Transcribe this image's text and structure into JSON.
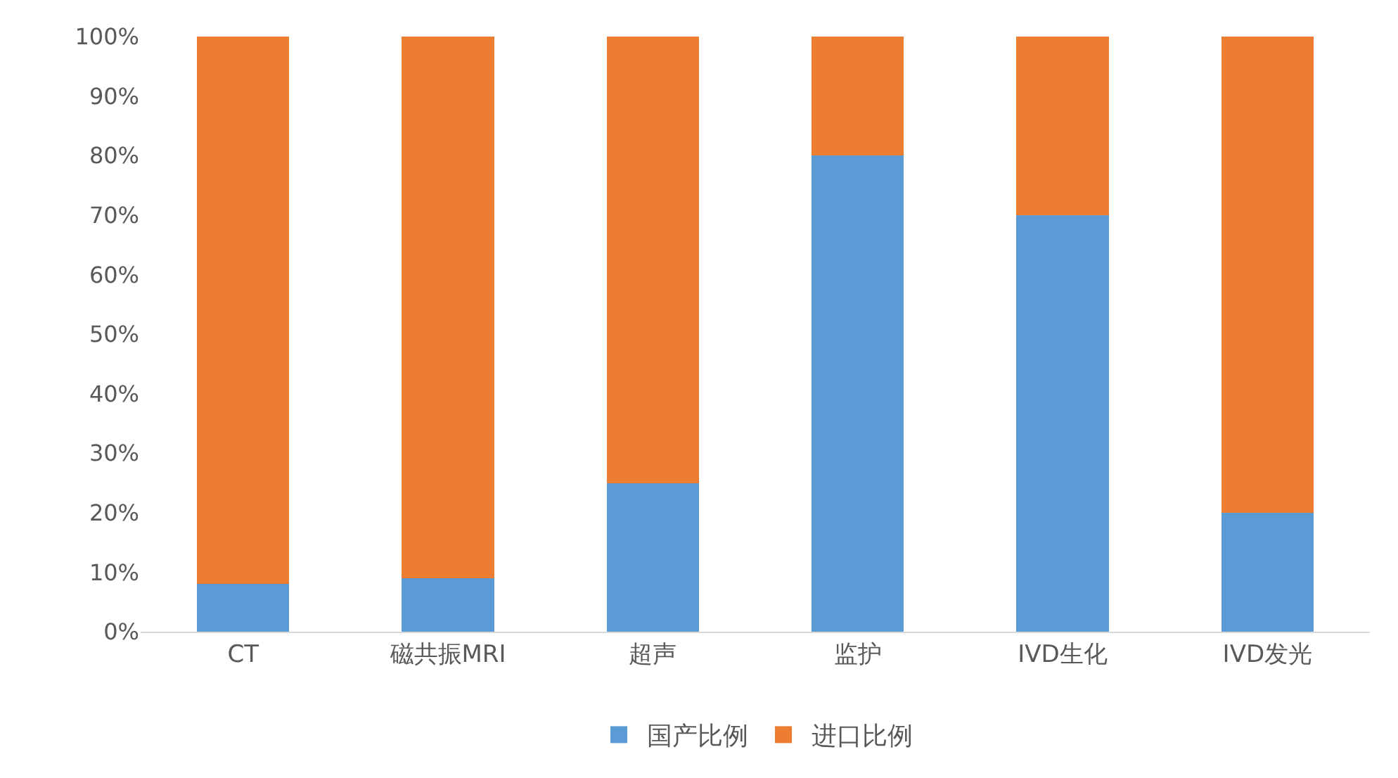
{
  "chart_data": {
    "type": "bar",
    "stacked": true,
    "categories": [
      "CT",
      "磁共振MRI",
      "超声",
      "监护",
      "IVD生化",
      "IVD发光"
    ],
    "series": [
      {
        "name": "国产比例",
        "color": "#5b9bd5",
        "values": [
          8,
          9,
          25,
          80,
          70,
          20
        ]
      },
      {
        "name": "进口比例",
        "color": "#ed7d31",
        "values": [
          92,
          91,
          75,
          20,
          30,
          80
        ]
      }
    ],
    "ylim": [
      0,
      100
    ],
    "yticks": [
      {
        "value": 0,
        "label": "0%"
      },
      {
        "value": 10,
        "label": "10%"
      },
      {
        "value": 20,
        "label": "20%"
      },
      {
        "value": 30,
        "label": "30%"
      },
      {
        "value": 40,
        "label": "40%"
      },
      {
        "value": 50,
        "label": "50%"
      },
      {
        "value": 60,
        "label": "60%"
      },
      {
        "value": 70,
        "label": "70%"
      },
      {
        "value": 80,
        "label": "80%"
      },
      {
        "value": 90,
        "label": "90%"
      },
      {
        "value": 100,
        "label": "100%"
      }
    ],
    "grid": false,
    "legend": "bottom"
  }
}
